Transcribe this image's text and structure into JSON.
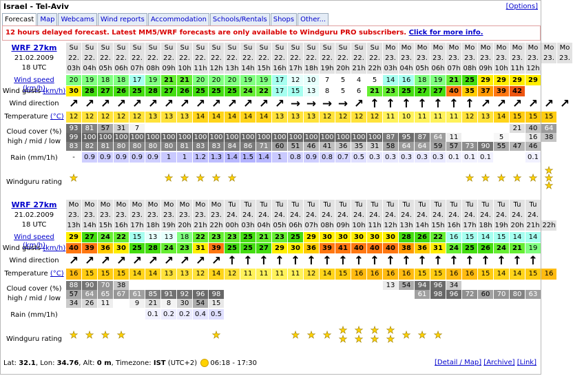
{
  "title": "Israel - Tel-Aviv",
  "options_label": "[Options]",
  "tabs": [
    "Forecast",
    "Map",
    "Webcams",
    "Wind reports",
    "Accommodation",
    "Schools/Rentals",
    "Shops",
    "Other..."
  ],
  "notice": {
    "text": "12 hours delayed forecast. Latest MM5/WRF forecasts are only available to Windguru PRO subscribers. ",
    "link": "Click for more info."
  },
  "labels": {
    "wind_speed": "Wind speed",
    "wind_speed_unit": "(km/h)",
    "wind_gusts": "Wind gusts",
    "wind_gusts_unit": "(km/h)",
    "wind_direction": "Wind direction",
    "temperature": "Temperature",
    "temperature_unit": "(°C)",
    "cloud_line1": "Cloud cover (%)",
    "cloud_line2": "high / mid / low",
    "rain": "Rain (mm/1h)",
    "rating": "Windguru rating"
  },
  "colors": {
    "day_header_bg": "#e6e6e6",
    "rain_bg": "#dcdcff",
    "temp_bg": "#ffe23a"
  },
  "blocks": [
    {
      "model": "WRF 27km",
      "date": "21.02.2009",
      "utc": "18 UTC",
      "days": [
        "Su",
        "Su",
        "Su",
        "Su",
        "Su",
        "Su",
        "Su",
        "Su",
        "Su",
        "Su",
        "Su",
        "Su",
        "Su",
        "Su",
        "Su",
        "Su",
        "Su",
        "Su",
        "Su",
        "Su",
        "Mo",
        "Mo",
        "Mo",
        "Mo",
        "Mo",
        "Mo",
        "Mo",
        "Mo",
        "Mo",
        "Mo",
        "Mo",
        "Mo"
      ],
      "dates": [
        "22.",
        "22.",
        "22.",
        "22.",
        "22.",
        "22.",
        "22.",
        "22.",
        "22.",
        "22.",
        "22.",
        "22.",
        "22.",
        "22.",
        "22.",
        "22.",
        "22.",
        "22.",
        "22.",
        "22.",
        "23.",
        "23.",
        "23.",
        "23.",
        "23.",
        "23.",
        "23.",
        "23.",
        "23.",
        "23.",
        "23.",
        "23."
      ],
      "hours": [
        "03h",
        "04h",
        "05h",
        "06h",
        "07h",
        "08h",
        "09h",
        "10h",
        "11h",
        "12h",
        "13h",
        "14h",
        "15h",
        "16h",
        "17h",
        "18h",
        "19h",
        "20h",
        "21h",
        "22h",
        "03h",
        "04h",
        "05h",
        "06h",
        "07h",
        "08h",
        "09h",
        "10h",
        "11h",
        "12h",
        "",
        ""
      ],
      "wind_speed": [
        "20",
        "19",
        "18",
        "18",
        "17",
        "19",
        "21",
        "21",
        "20",
        "20",
        "20",
        "19",
        "19",
        "17",
        "12",
        "10",
        "7",
        "5",
        "4",
        "5",
        "14",
        "16",
        "18",
        "19",
        "21",
        "25",
        "29",
        "29",
        "29",
        "29",
        "",
        ""
      ],
      "wind_gusts": [
        "30",
        "28",
        "27",
        "26",
        "25",
        "28",
        "27",
        "26",
        "25",
        "25",
        "25",
        "24",
        "22",
        "17",
        "15",
        "13",
        "8",
        "5",
        "6",
        "21",
        "23",
        "25",
        "27",
        "27",
        "40",
        "35",
        "37",
        "39",
        "42",
        "",
        "",
        ""
      ],
      "wind_dir": [
        "↗",
        "↗",
        "↗",
        "↗",
        "↗",
        "↗",
        "↗",
        "↗",
        "↗",
        "↗",
        "↗",
        "↗",
        "↗",
        "↗",
        "→",
        "→",
        "→",
        "→",
        "↗",
        "↑",
        "↑",
        "↑",
        "↑",
        "↑",
        "↑",
        "↑",
        "↗",
        "↗",
        "↗",
        "↗",
        "↗",
        "↗"
      ],
      "temperature": [
        "12",
        "12",
        "12",
        "12",
        "12",
        "13",
        "13",
        "13",
        "14",
        "14",
        "14",
        "14",
        "14",
        "13",
        "13",
        "13",
        "12",
        "12",
        "12",
        "12",
        "11",
        "10",
        "11",
        "11",
        "11",
        "12",
        "13",
        "14",
        "15",
        "15",
        "15",
        ""
      ],
      "cloud_high": [
        "93",
        "81",
        "57",
        "31",
        "7",
        "",
        "",
        "",
        "",
        "",
        "",
        "",
        "",
        "",
        "",
        "",
        "",
        "",
        "",
        "",
        "",
        "",
        "",
        "",
        "",
        "",
        "",
        "",
        "21",
        "40",
        "64",
        ""
      ],
      "cloud_mid": [
        "99",
        "100",
        "100",
        "100",
        "100",
        "100",
        "100",
        "100",
        "100",
        "100",
        "100",
        "100",
        "100",
        "100",
        "100",
        "100",
        "100",
        "100",
        "100",
        "100",
        "87",
        "95",
        "87",
        "64",
        "11",
        "",
        "",
        "5",
        "",
        "16",
        "38",
        ""
      ],
      "cloud_low": [
        "83",
        "82",
        "81",
        "80",
        "80",
        "80",
        "80",
        "81",
        "83",
        "83",
        "84",
        "86",
        "71",
        "60",
        "51",
        "46",
        "41",
        "36",
        "35",
        "31",
        "58",
        "64",
        "64",
        "59",
        "57",
        "73",
        "90",
        "55",
        "47",
        "46",
        "",
        ""
      ],
      "rain": [
        "-",
        "0.9",
        "0.9",
        "0.9",
        "0.9",
        "0.9",
        "1",
        "1",
        "1.2",
        "1.3",
        "1.4",
        "1.5",
        "1.4",
        "1",
        "0.8",
        "0.9",
        "0.8",
        "0.7",
        "0.5",
        "0.3",
        "0.3",
        "0.3",
        "0.3",
        "0.3",
        "0.1",
        "0.1",
        "0.1",
        "",
        "",
        "0.1",
        "",
        ""
      ],
      "rating": [
        1,
        0,
        0,
        0,
        0,
        0,
        1,
        1,
        1,
        1,
        1,
        0,
        0,
        0,
        0,
        0,
        0,
        0,
        0,
        0,
        0,
        0,
        0,
        0,
        0,
        1,
        1,
        1,
        1,
        1,
        3,
        0
      ]
    },
    {
      "model": "WRF 27km",
      "date": "21.02.2009",
      "utc": "18 UTC",
      "days": [
        "Mo",
        "Mo",
        "Mo",
        "Mo",
        "Mo",
        "Mo",
        "Mo",
        "Mo",
        "Mo",
        "Mo",
        "Tu",
        "Tu",
        "Tu",
        "Tu",
        "Tu",
        "Tu",
        "Tu",
        "Tu",
        "Tu",
        "Tu",
        "Tu",
        "Tu",
        "Tu",
        "Tu",
        "Tu",
        "Tu",
        "Tu",
        "Tu",
        "Tu",
        "Tu",
        "",
        ""
      ],
      "dates": [
        "23.",
        "23.",
        "23.",
        "23.",
        "23.",
        "23.",
        "23.",
        "23.",
        "23.",
        "23.",
        "24.",
        "24.",
        "24.",
        "24.",
        "24.",
        "24.",
        "24.",
        "24.",
        "24.",
        "24.",
        "24.",
        "24.",
        "24.",
        "24.",
        "24.",
        "24.",
        "24.",
        "24.",
        "24.",
        "24.",
        "",
        ""
      ],
      "hours": [
        "13h",
        "14h",
        "15h",
        "16h",
        "17h",
        "18h",
        "19h",
        "20h",
        "21h",
        "22h",
        "00h",
        "03h",
        "04h",
        "05h",
        "06h",
        "07h",
        "08h",
        "09h",
        "10h",
        "11h",
        "12h",
        "13h",
        "14h",
        "15h",
        "16h",
        "17h",
        "18h",
        "19h",
        "20h",
        "21h",
        "22h",
        ""
      ],
      "wind_speed": [
        "29",
        "27",
        "24",
        "22",
        "15",
        "13",
        "13",
        "18",
        "22",
        "23",
        "23",
        "25",
        "21",
        "23",
        "25",
        "29",
        "30",
        "30",
        "30",
        "30",
        "30",
        "28",
        "26",
        "22",
        "16",
        "15",
        "14",
        "15",
        "14",
        "14",
        "",
        ""
      ],
      "wind_gusts": [
        "40",
        "39",
        "36",
        "30",
        "25",
        "28",
        "24",
        "23",
        "31",
        "39",
        "25",
        "25",
        "27",
        "29",
        "30",
        "36",
        "39",
        "41",
        "40",
        "40",
        "40",
        "38",
        "36",
        "31",
        "24",
        "25",
        "26",
        "24",
        "21",
        "19",
        "",
        ""
      ],
      "wind_dir": [
        "↗",
        "↗",
        "↗",
        "↗",
        "↗",
        "↗",
        "↗",
        "↗",
        "↗",
        "↗",
        "↑",
        "↑",
        "↑",
        "↑",
        "↑",
        "↑",
        "↑",
        "↑",
        "↑",
        "↑",
        "↑",
        "↑",
        "↑",
        "↑",
        "↑",
        "↑",
        "↑",
        "↑",
        "↑",
        "↑",
        "",
        ""
      ],
      "temperature": [
        "16",
        "15",
        "15",
        "15",
        "14",
        "14",
        "13",
        "13",
        "12",
        "14",
        "12",
        "11",
        "11",
        "11",
        "11",
        "12",
        "14",
        "15",
        "16",
        "16",
        "16",
        "16",
        "15",
        "15",
        "16",
        "16",
        "15",
        "14",
        "14",
        "15",
        "16",
        ""
      ],
      "cloud_high": [
        "88",
        "90",
        "70",
        "38",
        "",
        "",
        "",
        "",
        "",
        "",
        "",
        "",
        "",
        "",
        "",
        "",
        "",
        "",
        "",
        "",
        "13",
        "54",
        "94",
        "96",
        "34",
        "",
        "",
        "",
        "",
        "",
        "",
        ""
      ],
      "cloud_mid": [
        "57",
        "64",
        "65",
        "67",
        "61",
        "85",
        "91",
        "92",
        "96",
        "98",
        "",
        "",
        "",
        "",
        "",
        "",
        "",
        "",
        "",
        "",
        "",
        "",
        "61",
        "98",
        "96",
        "72",
        "60",
        "70",
        "80",
        "63",
        "",
        ""
      ],
      "cloud_low": [
        "34",
        "26",
        "11",
        "",
        "9",
        "21",
        "8",
        "30",
        "54",
        "15",
        "",
        "",
        "",
        "",
        "",
        "",
        "",
        "",
        "",
        "",
        "",
        "",
        "",
        "",
        "",
        "",
        "",
        "",
        "",
        "",
        "",
        ""
      ],
      "rain": [
        "",
        "",
        "",
        "",
        "",
        "0.1",
        "0.2",
        "0.2",
        "0.4",
        "0.5",
        "",
        "",
        "",
        "",
        "",
        "",
        "",
        "",
        "",
        "",
        "",
        "",
        "",
        "",
        "",
        "",
        "",
        "",
        "",
        "",
        "",
        ""
      ],
      "rating": [
        1,
        1,
        1,
        1,
        0,
        0,
        0,
        0,
        0,
        1,
        0,
        0,
        0,
        0,
        1,
        1,
        1,
        2,
        2,
        2,
        2,
        1,
        1,
        1,
        0,
        0,
        0,
        0,
        0,
        0,
        0,
        0
      ]
    }
  ],
  "footer": {
    "lat_label": "Lat:",
    "lat": "32.1",
    "lon_label": ", Lon:",
    "lon": "34.76",
    "alt_label": ", Alt:",
    "alt": "0 m",
    "tz_label": ", Timezone:",
    "tz": "IST",
    "tz_offset": " (UTC+2)",
    "sun": "06:18 - 17:30",
    "links": [
      "[Detail / Map]",
      "[Archive]",
      "[Link]"
    ]
  }
}
